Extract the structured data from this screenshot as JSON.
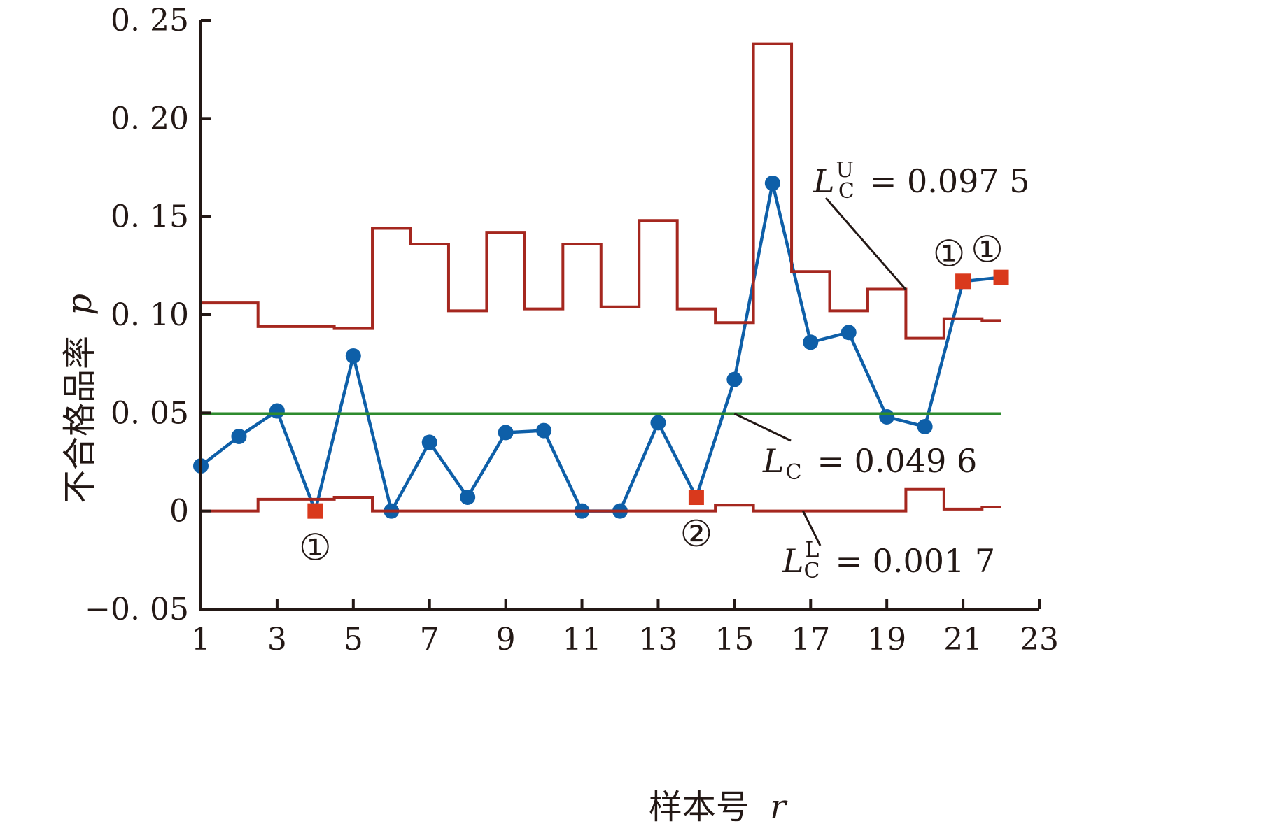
{
  "chart_data": {
    "type": "line",
    "xlabel": "样本号",
    "xlabel_var": "r",
    "ylabel": "不合格品率",
    "ylabel_var": "p",
    "xlim": [
      1,
      23
    ],
    "ylim": [
      -0.05,
      0.25
    ],
    "x_ticks": [
      1,
      3,
      5,
      7,
      9,
      11,
      13,
      15,
      17,
      19,
      21,
      23
    ],
    "y_ticks": [
      -0.05,
      0,
      0.05,
      0.1,
      0.15,
      0.2,
      0.25
    ],
    "x_tick_labels": [
      "1",
      "3",
      "5",
      "7",
      "9",
      "11",
      "13",
      "15",
      "17",
      "19",
      "21",
      "23"
    ],
    "y_tick_labels": [
      "−0. 05",
      "0",
      "0. 05",
      "0. 10",
      "0. 15",
      "0. 20",
      "0. 25"
    ],
    "grid": false,
    "series": [
      {
        "role": "p",
        "color": "#0e5fa8",
        "marker": "circle",
        "x": [
          1,
          2,
          3,
          4,
          5,
          6,
          7,
          8,
          9,
          10,
          11,
          12,
          13,
          14,
          15,
          16,
          17,
          18,
          19,
          20,
          21,
          22
        ],
        "values": [
          0.023,
          0.038,
          0.051,
          0.0,
          0.079,
          0.0,
          0.035,
          0.007,
          0.04,
          0.041,
          0.0,
          0.0,
          0.045,
          0.007,
          0.067,
          0.167,
          0.086,
          0.091,
          0.048,
          0.043,
          0.117,
          0.119
        ]
      },
      {
        "role": "upper-limit",
        "color": "#a5271f",
        "step": true,
        "x": [
          1,
          2,
          3,
          4,
          5,
          6,
          7,
          8,
          9,
          10,
          11,
          12,
          13,
          14,
          15,
          16,
          17,
          18,
          19,
          20,
          21,
          22
        ],
        "values": [
          0.106,
          0.106,
          0.094,
          0.094,
          0.093,
          0.144,
          0.136,
          0.102,
          0.142,
          0.103,
          0.136,
          0.104,
          0.148,
          0.103,
          0.096,
          0.238,
          0.122,
          0.102,
          0.113,
          0.088,
          0.098,
          0.097
        ]
      },
      {
        "role": "lower-limit",
        "color": "#a5271f",
        "step": true,
        "x": [
          1,
          2,
          3,
          4,
          5,
          6,
          7,
          8,
          9,
          10,
          11,
          12,
          13,
          14,
          15,
          16,
          17,
          18,
          19,
          20,
          21,
          22
        ],
        "values": [
          0.0,
          0.0,
          0.006,
          0.006,
          0.007,
          0.0,
          0.0,
          0.0,
          0.0,
          0.0,
          0.0,
          0.0,
          0.0,
          0.0,
          0.003,
          0.0,
          0.0,
          0.0,
          0.0,
          0.011,
          0.001,
          0.002
        ]
      },
      {
        "role": "center-line",
        "color": "#2e8b2e",
        "value": 0.0496,
        "x": [
          1,
          22
        ]
      }
    ],
    "flagged_points": [
      {
        "x": 4,
        "y": 0.0,
        "label": "①",
        "label_position": "below"
      },
      {
        "x": 14,
        "y": 0.007,
        "label": "②",
        "label_position": "below"
      },
      {
        "x": 21,
        "y": 0.117,
        "label": "①",
        "label_position": "above"
      },
      {
        "x": 22,
        "y": 0.119,
        "label": "①",
        "label_position": "above"
      }
    ],
    "flag_color": "#d9391c",
    "annotations": [
      {
        "key": "upper",
        "symbol": "L",
        "sub": "C",
        "sup": "U",
        "text": "= 0.097 5",
        "target_x": 19.5,
        "target_y": 0.1128
      },
      {
        "key": "center",
        "symbol": "L",
        "sub": "C",
        "sup": "",
        "text": "= 0.049 6",
        "target_x": 15.0,
        "target_y": 0.0496
      },
      {
        "key": "lower",
        "symbol": "L",
        "sub": "C",
        "sup": "L",
        "text": "= 0.001 7",
        "target_x": 16.8,
        "target_y": 0.0
      }
    ]
  }
}
